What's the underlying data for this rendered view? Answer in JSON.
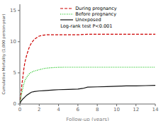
{
  "chart_data": {
    "type": "line",
    "xlabel": "Follow-up (years)",
    "ylabel": "Cumulative Mortality (1,000 person-year)",
    "annotation": "Log-rank test P<0.001",
    "xlim": [
      0,
      14
    ],
    "ylim": [
      0,
      16
    ],
    "xticks": [
      0,
      2,
      4,
      6,
      8,
      10,
      12,
      14
    ],
    "yticks": [
      0,
      5,
      10,
      15
    ],
    "legend": "upper left",
    "series": [
      {
        "name": "During pregnancy",
        "color": "#cc0000",
        "line_style": "dashed",
        "x": [
          0,
          0.05,
          0.1,
          0.15,
          0.2,
          0.3,
          0.4,
          0.5,
          0.6,
          0.7,
          0.8,
          0.9,
          1.0,
          1.1,
          1.2,
          1.4,
          1.6,
          1.8,
          2.0,
          2.3,
          2.7,
          3.0,
          3.5,
          4.0,
          5.0,
          6.0,
          7.0,
          8.0,
          9.0,
          10.0,
          11.0,
          12.0,
          13.0,
          14.0
        ],
        "values": [
          0,
          0.8,
          1.5,
          2.2,
          3.0,
          4.2,
          5.5,
          6.5,
          7.2,
          7.8,
          8.3,
          8.8,
          9.2,
          9.5,
          9.8,
          10.2,
          10.5,
          10.7,
          10.9,
          11.0,
          11.1,
          11.1,
          11.1,
          11.1,
          11.1,
          11.1,
          11.2,
          11.2,
          11.2,
          11.2,
          11.2,
          11.2,
          11.2,
          11.2
        ]
      },
      {
        "name": "Before pregnancy",
        "color": "#00bb00",
        "line_style": "dotted",
        "x": [
          0,
          0.05,
          0.1,
          0.2,
          0.3,
          0.4,
          0.5,
          0.6,
          0.7,
          0.8,
          0.9,
          1.0,
          1.2,
          1.5,
          2.0,
          2.5,
          3.0,
          3.5,
          4.0,
          4.5,
          5.0,
          6.0,
          7.0,
          8.0,
          9.0,
          10.0,
          11.0,
          12.0,
          13.0,
          14.0
        ],
        "values": [
          0,
          0.5,
          1.0,
          1.8,
          2.5,
          3.2,
          3.7,
          4.0,
          4.3,
          4.5,
          4.7,
          4.9,
          5.1,
          5.3,
          5.5,
          5.7,
          5.8,
          5.85,
          5.88,
          5.9,
          5.9,
          5.9,
          5.9,
          5.9,
          5.9,
          5.9,
          5.9,
          5.9,
          5.9,
          5.9
        ]
      },
      {
        "name": "Unexposed",
        "color": "#111111",
        "line_style": "solid",
        "x": [
          0,
          0.05,
          0.1,
          0.2,
          0.3,
          0.5,
          0.7,
          1.0,
          1.2,
          1.5,
          2.0,
          2.5,
          3.0,
          3.5,
          4.0,
          5.0,
          6.0,
          6.5,
          7.0,
          8.0,
          9.0,
          10.0,
          11.0,
          12.0,
          13.0,
          14.0
        ],
        "values": [
          0,
          0.2,
          0.4,
          0.6,
          0.8,
          1.1,
          1.4,
          1.7,
          1.9,
          2.0,
          2.1,
          2.15,
          2.2,
          2.25,
          2.3,
          2.35,
          2.4,
          2.5,
          2.7,
          2.75,
          2.8,
          2.85,
          2.9,
          2.9,
          2.95,
          3.0
        ]
      }
    ]
  }
}
